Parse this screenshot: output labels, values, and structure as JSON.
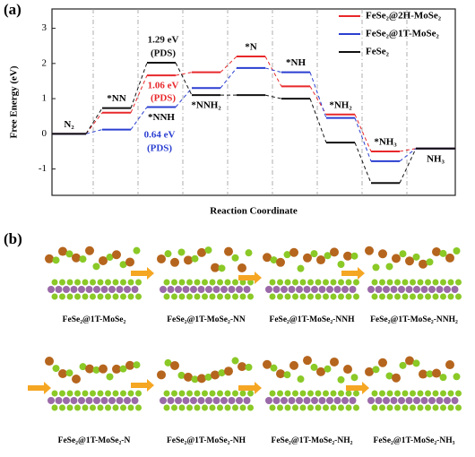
{
  "chart_data": {
    "type": "energy-levels",
    "panel_label": "(a)",
    "ylabel": "Free Energy (eV)",
    "xlabel": "Reaction Coordinate",
    "categories": [
      "N₂",
      "*NN",
      "*NNH",
      "*NNH₂",
      "*N",
      "*NH",
      "*NH₂",
      "*NH₃",
      "NH₃"
    ],
    "series": [
      {
        "name": "FeSe₂@2H-MoSe₂",
        "color": "#e8282b",
        "values": [
          0,
          0.6,
          1.66,
          1.75,
          2.2,
          1.35,
          0.55,
          -0.5,
          -0.42
        ]
      },
      {
        "name": "FeSe₂@1T-MoSe₂",
        "color": "#2b3fd1",
        "values": [
          0,
          0.12,
          0.76,
          1.3,
          1.87,
          1.75,
          0.45,
          -0.78,
          -0.42
        ]
      },
      {
        "name": "FeSe₂",
        "color": "#111111",
        "values": [
          0,
          0.73,
          2.02,
          1.1,
          1.1,
          1.0,
          -0.25,
          -1.4,
          -0.42
        ]
      }
    ],
    "annotations": [
      "1.29 eV",
      "(PDS)",
      "1.06 eV",
      "(PDS)",
      "0.64 eV",
      "(PDS)"
    ],
    "ylim": [
      -1.75,
      3.55
    ],
    "yticks": [
      -1,
      0,
      1,
      2,
      3
    ],
    "legend": "upper right"
  },
  "panel_b": {
    "panel_label": "(b)",
    "captions": [
      "FeSe₂@1T-MoSe₂",
      "FeSe₂@1T-MoSe₂-NN",
      "FeSe₂@1T-MoSe₂-NNH",
      "FeSe₂@1T-MoSe₂-NNH₂",
      "FeSe₂@1T-MoSe₂-N",
      "FeSe₂@1T-MoSe₂-NH",
      "FeSe₂@1T-MoSe₂-NH₂",
      "FeSe₂@1T-MoSe₂-NH₃"
    ]
  }
}
